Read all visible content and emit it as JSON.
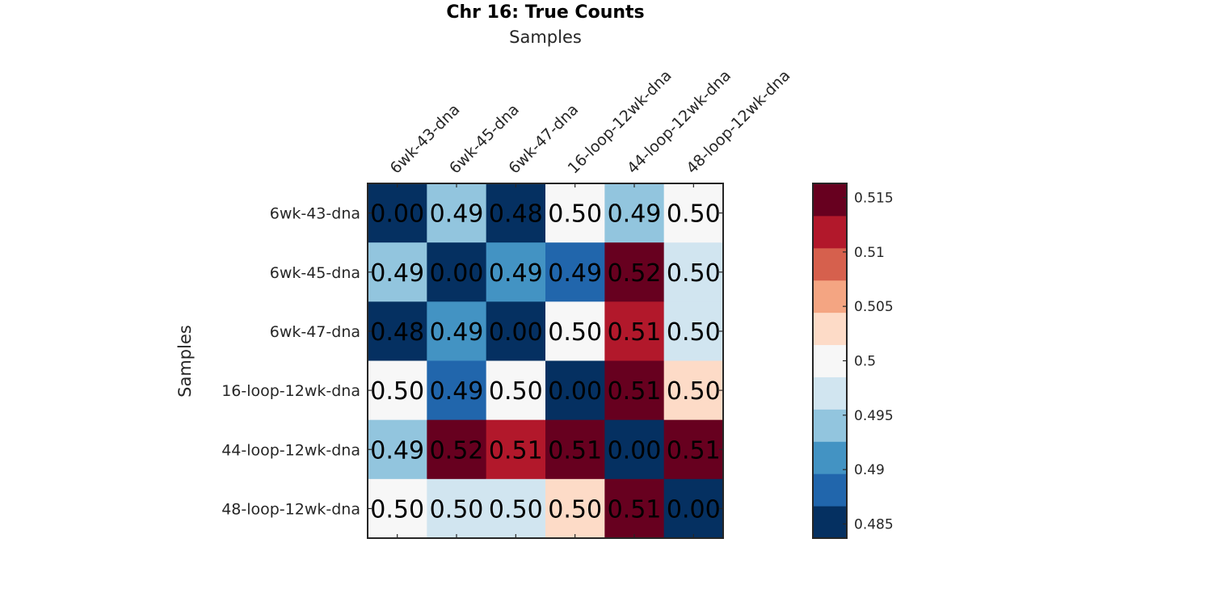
{
  "chart_data": {
    "type": "heatmap",
    "title": "Chr 16: True Counts",
    "xlabel": "Samples",
    "ylabel": "Samples",
    "x_categories": [
      "6wk-43-dna",
      "6wk-45-dna",
      "6wk-47-dna",
      "16-loop-12wk-dna",
      "44-loop-12wk-dna",
      "48-loop-12wk-dna"
    ],
    "y_categories": [
      "6wk-43-dna",
      "6wk-45-dna",
      "6wk-47-dna",
      "16-loop-12wk-dna",
      "44-loop-12wk-dna",
      "48-loop-12wk-dna"
    ],
    "values": [
      [
        0.0,
        0.494,
        0.484,
        0.501,
        0.495,
        0.501
      ],
      [
        0.494,
        0.0,
        0.492,
        0.489,
        0.518,
        0.498
      ],
      [
        0.484,
        0.492,
        0.0,
        0.501,
        0.512,
        0.498
      ],
      [
        0.501,
        0.489,
        0.501,
        0.0,
        0.514,
        0.504
      ],
      [
        0.495,
        0.518,
        0.512,
        0.514,
        0.0,
        0.514
      ],
      [
        0.501,
        0.498,
        0.498,
        0.504,
        0.514,
        0.0
      ]
    ],
    "cell_labels": [
      [
        "0.00",
        "0.49",
        "0.48",
        "0.50",
        "0.49",
        "0.50"
      ],
      [
        "0.49",
        "0.00",
        "0.49",
        "0.49",
        "0.52",
        "0.50"
      ],
      [
        "0.48",
        "0.49",
        "0.00",
        "0.50",
        "0.51",
        "0.50"
      ],
      [
        "0.50",
        "0.49",
        "0.50",
        "0.00",
        "0.51",
        "0.50"
      ],
      [
        "0.49",
        "0.52",
        "0.51",
        "0.51",
        "0.00",
        "0.51"
      ],
      [
        "0.50",
        "0.50",
        "0.50",
        "0.50",
        "0.51",
        "0.00"
      ]
    ],
    "colorbar": {
      "range": [
        0.4837,
        0.5163
      ],
      "ticks": [
        0.485,
        0.49,
        0.495,
        0.5,
        0.505,
        0.51,
        0.515
      ],
      "tick_labels": [
        "0.485",
        "0.49",
        "0.495",
        "0.5",
        "0.505",
        "0.51",
        "0.515"
      ],
      "colors": [
        "#053061",
        "#2166ac",
        "#4393c3",
        "#92c5de",
        "#d1e5f0",
        "#f7f7f7",
        "#fddbc7",
        "#f4a582",
        "#d6604d",
        "#b2182b",
        "#67001f"
      ]
    },
    "legend": "right",
    "grid": false
  }
}
